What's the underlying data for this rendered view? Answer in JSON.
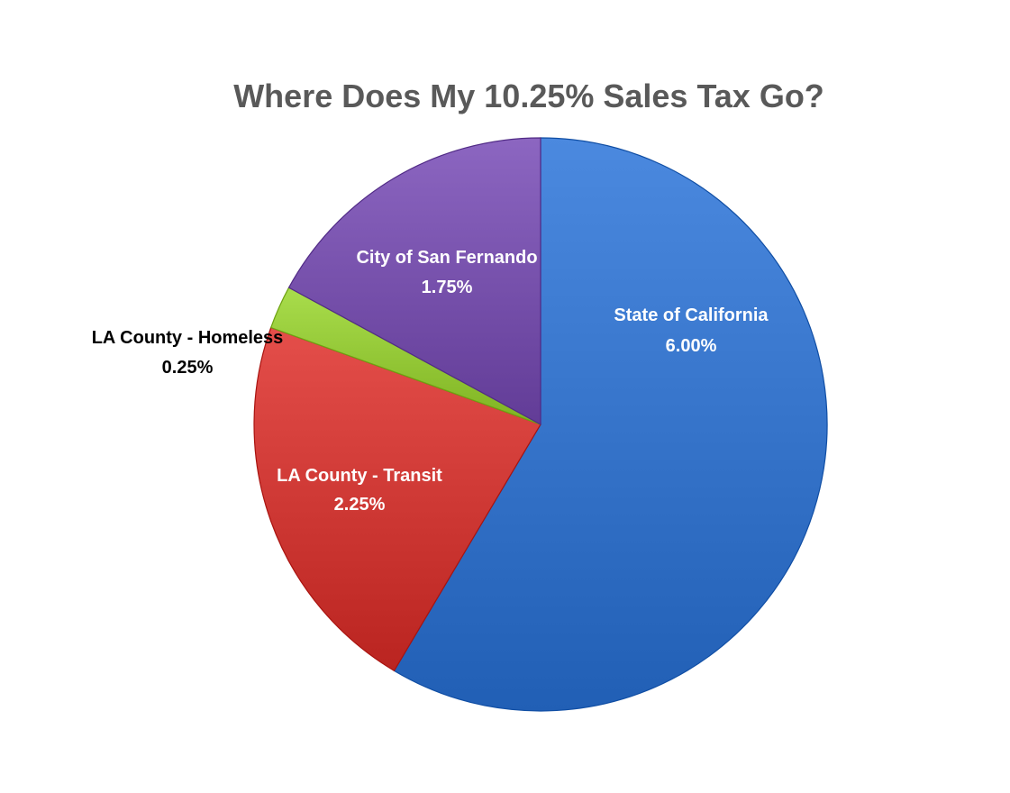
{
  "chart_data": {
    "type": "pie",
    "title": "Where Does My 10.25% Sales Tax Go?",
    "slices": [
      {
        "name": "State of California",
        "value": 6.0,
        "value_label": "6.00%",
        "color": "#3d7bd1",
        "label_color": "#ffffff"
      },
      {
        "name": "LA County - Transit",
        "value": 2.25,
        "value_label": "2.25%",
        "color": "#d6403c",
        "label_color": "#ffffff"
      },
      {
        "name": "LA County - Homeless",
        "value": 0.25,
        "value_label": "0.25%",
        "color": "#9bcf3e",
        "label_color": "#000000"
      },
      {
        "name": "City of San Fernando",
        "value": 1.75,
        "value_label": "1.75%",
        "color": "#7e58b3",
        "label_color": "#ffffff"
      }
    ],
    "start_position": "12 o'clock",
    "direction": "clockwise",
    "legend": "none"
  }
}
